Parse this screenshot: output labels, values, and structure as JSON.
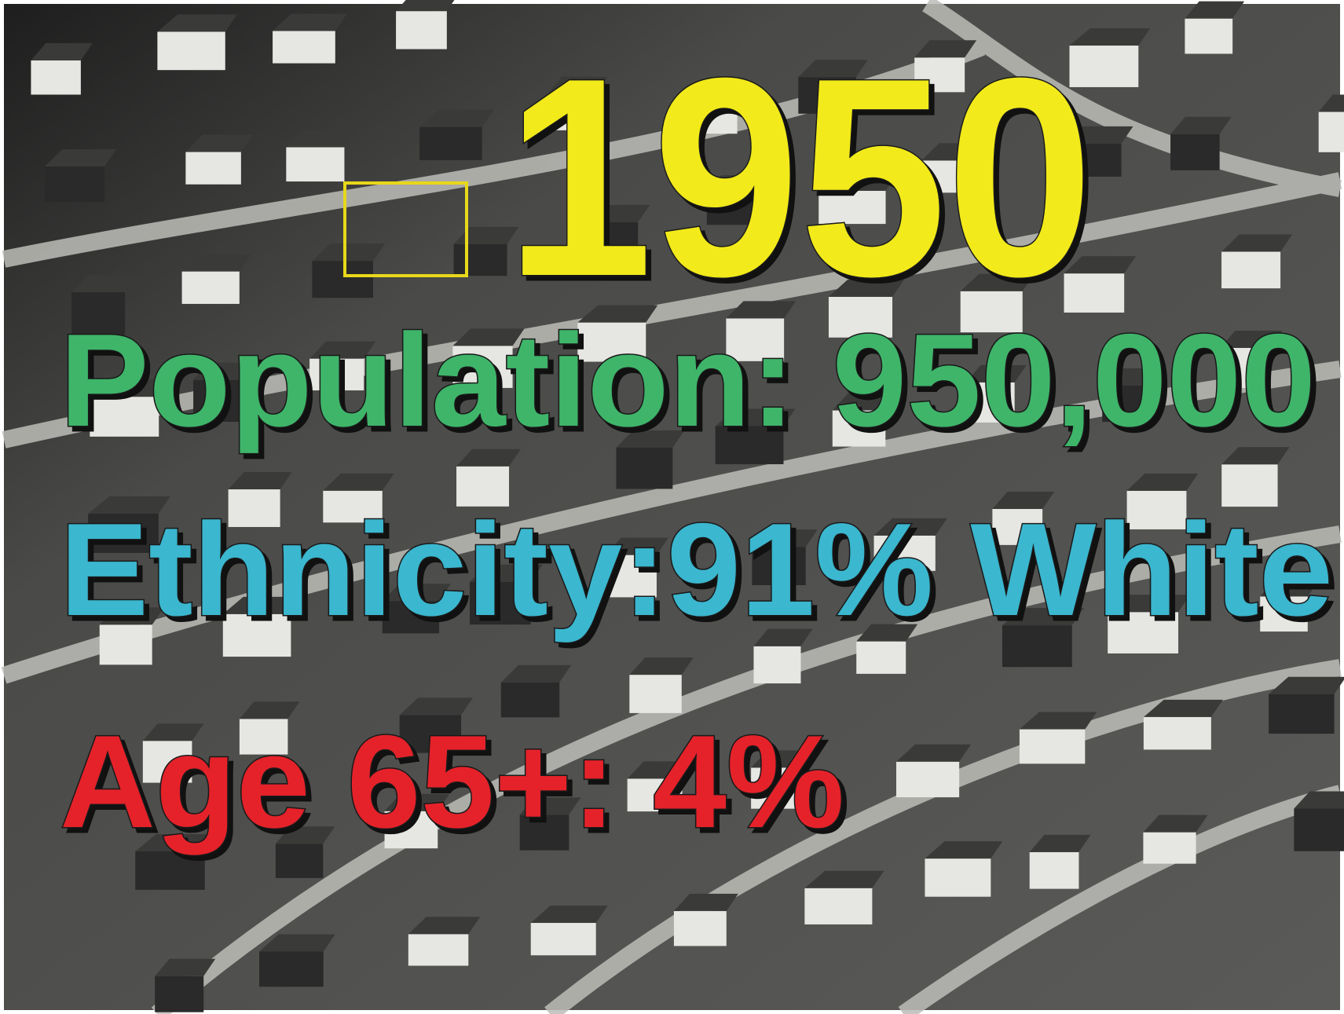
{
  "slide": {
    "year": "1950",
    "population": "Population: 950,000",
    "ethnicity": "Ethnicity:91% White",
    "age": "Age 65+: 4%"
  }
}
